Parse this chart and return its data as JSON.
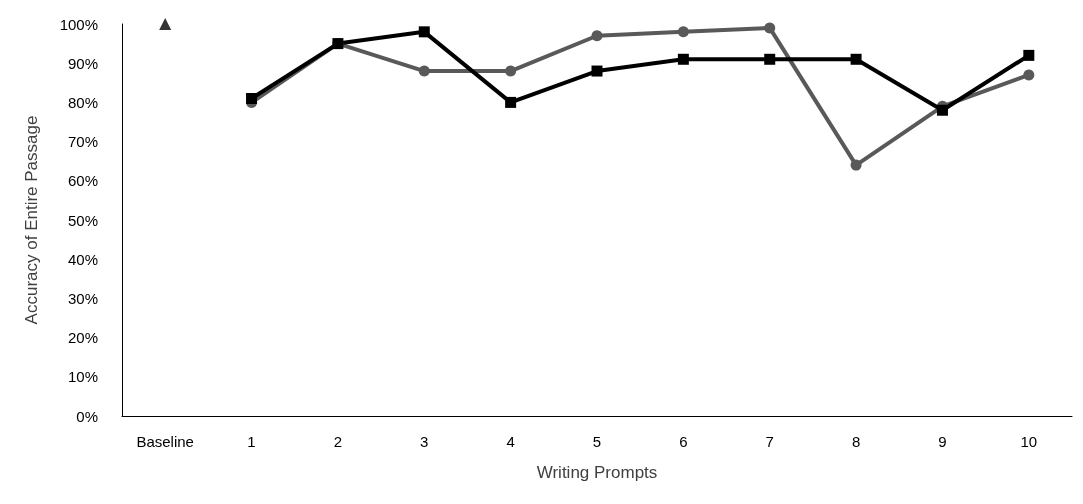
{
  "chart_data": {
    "type": "line",
    "xlabel": "Writing Prompts",
    "ylabel": "Accuracy of Entire Passage",
    "categories": [
      "Baseline",
      "1",
      "2",
      "3",
      "4",
      "5",
      "6",
      "7",
      "8",
      "9",
      "10"
    ],
    "series": [
      {
        "type": "scatter",
        "marker": "triangle",
        "color": "#000000",
        "values": [
          100,
          null,
          null,
          null,
          null,
          null,
          null,
          null,
          null,
          null,
          null
        ]
      },
      {
        "marker": "circle",
        "line_style": "solid",
        "color": "#595959",
        "values": [
          null,
          80,
          95,
          88,
          88,
          97,
          98,
          99,
          64,
          79,
          87
        ]
      },
      {
        "marker": "square",
        "line_style": "solid",
        "color": "#000000",
        "values": [
          null,
          81,
          95,
          98,
          80,
          88,
          91,
          91,
          91,
          78,
          92
        ]
      }
    ],
    "ylim": [
      0,
      100
    ],
    "yticks": [
      {
        "value": 0,
        "label": "0%"
      },
      {
        "value": 10,
        "label": "10%"
      },
      {
        "value": 20,
        "label": "20%"
      },
      {
        "value": 30,
        "label": "30%"
      },
      {
        "value": 40,
        "label": "40%"
      },
      {
        "value": 50,
        "label": "50%"
      },
      {
        "value": 60,
        "label": "60%"
      },
      {
        "value": 70,
        "label": "70%"
      },
      {
        "value": 80,
        "label": "80%"
      },
      {
        "value": 90,
        "label": "90%"
      },
      {
        "value": 100,
        "label": "100%"
      }
    ],
    "grid": false
  }
}
